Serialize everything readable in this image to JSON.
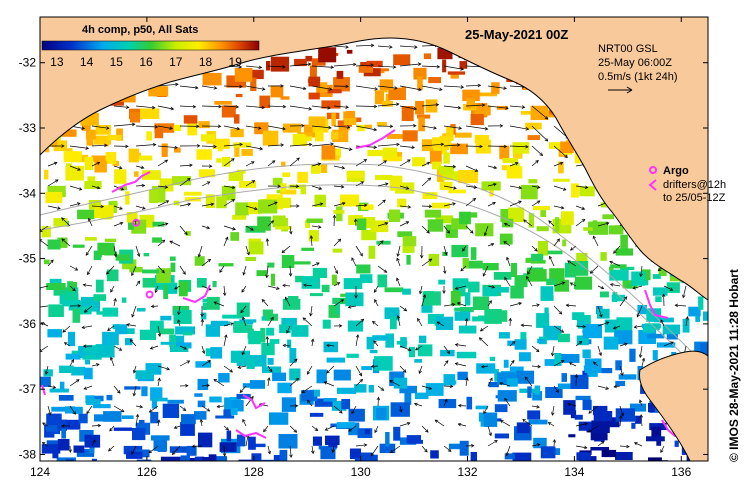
{
  "map": {
    "title": "25-May-2021 00Z",
    "credit": "© IMOS 28-May-2021 11:28 Hobart",
    "extent": {
      "lon": [
        124,
        136.5
      ],
      "lat": [
        -38.1,
        -31.3
      ]
    },
    "colors": {
      "land": "#f8c99a",
      "argo": "#ff33ff",
      "drifter": "#ff33ff",
      "coast": "#000000",
      "isobath": "#aaaaaa"
    }
  },
  "colorbar": {
    "label": "4h comp, p50, All Sats",
    "ticks": [
      "13",
      "14",
      "15",
      "16",
      "17",
      "18",
      "19"
    ],
    "range": [
      12.5,
      19.8
    ]
  },
  "current_legend": {
    "line1": "NRT00 GSL",
    "line2": "25-May 06:00Z",
    "line3": "0.5m/s (1kt 24h)"
  },
  "float_legend": {
    "argo_label": "Argo",
    "drifter_line1": "drifters@12h",
    "drifter_line2": "to 25/05-12Z"
  },
  "axes": {
    "x_ticks": [
      "124",
      "126",
      "128",
      "130",
      "132",
      "134",
      "136"
    ],
    "y_ticks": [
      "-32",
      "-33",
      "-34",
      "-35",
      "-36",
      "-37",
      "-38"
    ]
  },
  "argo_floats": [
    {
      "lon": 125.8,
      "lat": -34.45
    },
    {
      "lon": 126.05,
      "lat": -35.55
    }
  ]
}
